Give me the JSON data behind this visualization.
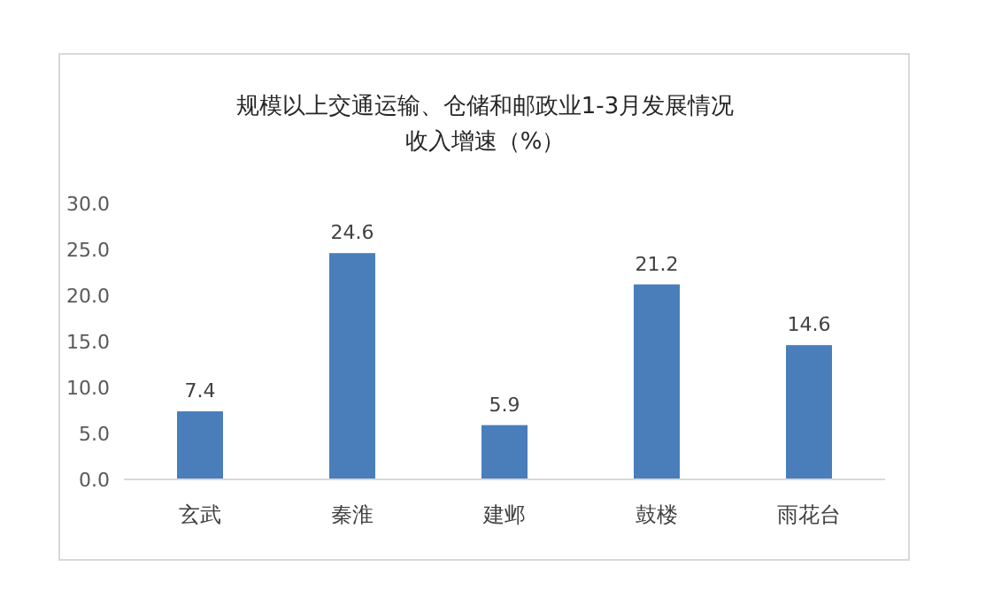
{
  "chart_data": {
    "type": "bar",
    "title": "规模以上交通运输、仓储和邮政业1-3月发展情况",
    "subtitle": "收入增速（%）",
    "categories": [
      "玄武",
      "秦淮",
      "建邺",
      "鼓楼",
      "雨花台"
    ],
    "values": [
      7.4,
      24.6,
      5.9,
      21.2,
      14.6
    ],
    "color": "#4a7ebb",
    "ylim": [
      0,
      30
    ],
    "yticks": [
      {
        "value": 0,
        "label": "0.0"
      },
      {
        "value": 5,
        "label": "5.0"
      },
      {
        "value": 10,
        "label": "10.0"
      },
      {
        "value": 15,
        "label": "15.0"
      },
      {
        "value": 20,
        "label": "20.0"
      },
      {
        "value": 25,
        "label": "25.0"
      },
      {
        "value": 30,
        "label": "30.0"
      }
    ],
    "data_labels": true,
    "grid": false
  }
}
